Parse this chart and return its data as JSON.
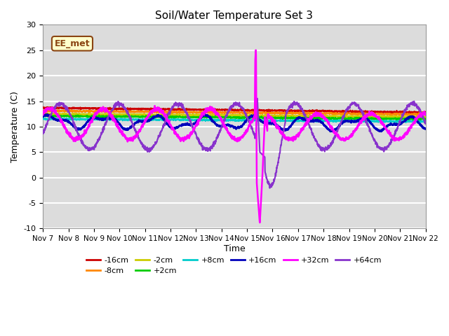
{
  "title": "Soil/Water Temperature Set 3",
  "xlabel": "Time",
  "ylabel": "Temperature (C)",
  "ylim": [
    -10,
    30
  ],
  "xlim": [
    0,
    15
  ],
  "bg_color": "#dcdcdc",
  "watermark": "EE_met",
  "series": {
    "-16cm": {
      "color": "#cc0000"
    },
    "-8cm": {
      "color": "#ff8800"
    },
    "-2cm": {
      "color": "#cccc00"
    },
    "+2cm": {
      "color": "#00cc00"
    },
    "+8cm": {
      "color": "#00cccc"
    },
    "+16cm": {
      "color": "#0000bb"
    },
    "+32cm": {
      "color": "#ff00ff"
    },
    "+64cm": {
      "color": "#8833cc"
    }
  },
  "x_ticks": [
    0,
    1,
    2,
    3,
    4,
    5,
    6,
    7,
    8,
    9,
    10,
    11,
    12,
    13,
    14,
    15
  ],
  "x_labels": [
    "Nov 7",
    "Nov 8",
    "Nov 9",
    "Nov 10",
    "Nov 11",
    "Nov 12",
    "Nov 13",
    "Nov 14",
    "Nov 15",
    "Nov 16",
    "Nov 17",
    "Nov 18",
    "Nov 19",
    "Nov 20",
    "Nov 21",
    "Nov 22"
  ],
  "y_ticks": [
    -10,
    -5,
    0,
    5,
    10,
    15,
    20,
    25,
    30
  ]
}
